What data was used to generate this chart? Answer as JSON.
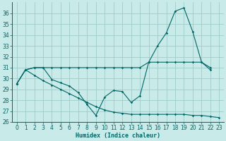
{
  "xlabel": "Humidex (Indice chaleur)",
  "bg_color": "#c8eae8",
  "grid_color": "#a0ccc8",
  "line_color": "#006666",
  "xlim": [
    -0.5,
    23.5
  ],
  "ylim": [
    26,
    37
  ],
  "yticks": [
    26,
    27,
    28,
    29,
    30,
    31,
    32,
    33,
    34,
    35,
    36
  ],
  "xticks": [
    0,
    1,
    2,
    3,
    4,
    5,
    6,
    7,
    8,
    9,
    10,
    11,
    12,
    13,
    14,
    15,
    16,
    17,
    18,
    19,
    20,
    21,
    22,
    23
  ],
  "curve1_x": [
    0,
    1,
    2,
    3,
    4,
    5,
    6,
    7,
    8,
    9,
    10,
    11,
    12,
    13,
    14,
    15,
    16,
    17,
    18,
    19,
    20,
    21,
    22
  ],
  "curve1_y": [
    29.5,
    30.8,
    31.0,
    31.0,
    29.9,
    29.6,
    29.3,
    28.7,
    27.6,
    26.6,
    28.3,
    28.9,
    28.8,
    27.8,
    28.4,
    31.5,
    33.0,
    34.2,
    36.2,
    36.5,
    34.3,
    31.5,
    31.0
  ],
  "curve2_x": [
    0,
    1,
    2,
    3,
    4,
    5,
    6,
    7,
    8,
    9,
    10,
    11,
    12,
    13,
    14,
    15,
    16,
    17,
    18,
    19,
    20,
    21,
    22
  ],
  "curve2_y": [
    29.5,
    30.8,
    31.0,
    31.0,
    31.0,
    31.0,
    31.0,
    31.0,
    31.0,
    31.0,
    31.0,
    31.0,
    31.0,
    31.0,
    31.0,
    31.5,
    31.5,
    31.5,
    31.5,
    31.5,
    31.5,
    31.5,
    30.8
  ],
  "curve3_x": [
    0,
    1,
    2,
    3,
    4,
    5,
    6,
    7,
    8,
    9,
    10,
    11,
    12,
    13,
    14,
    15,
    16,
    17,
    18,
    19,
    20,
    21,
    22,
    23
  ],
  "curve3_y": [
    29.5,
    30.8,
    30.3,
    29.8,
    29.4,
    29.0,
    28.6,
    28.2,
    27.8,
    27.4,
    27.1,
    26.9,
    26.8,
    26.7,
    26.7,
    26.7,
    26.7,
    26.7,
    26.7,
    26.7,
    26.6,
    26.6,
    26.5,
    26.4
  ]
}
